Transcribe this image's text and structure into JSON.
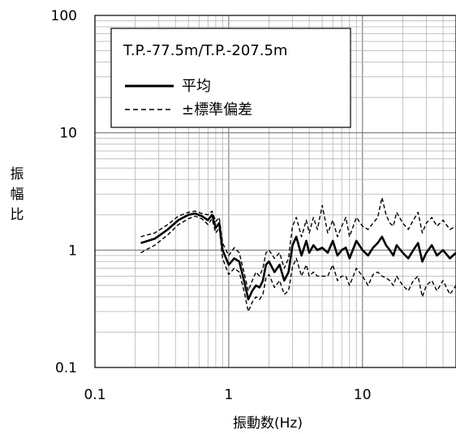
{
  "chart_data": {
    "type": "line",
    "xscale": "log",
    "yscale": "log",
    "xlim": [
      0.1,
      50
    ],
    "ylim": [
      0.1,
      100
    ],
    "x_ticks": [
      {
        "value": 0.1,
        "label": "0.1"
      },
      {
        "value": 1,
        "label": "1"
      },
      {
        "value": 10,
        "label": "10"
      }
    ],
    "y_ticks": [
      {
        "value": 0.1,
        "label": "0.1"
      },
      {
        "value": 1,
        "label": "1"
      },
      {
        "value": 10,
        "label": "10"
      },
      {
        "value": 100,
        "label": "100"
      }
    ],
    "xlabel": "振動数(Hz)",
    "ylabel": "振幅比",
    "grid": true,
    "legend": {
      "position": "top-left",
      "title": "T.P.-77.5m/T.P.-207.5m",
      "entries": [
        {
          "label": "平均",
          "style": "solid"
        },
        {
          "label": "±標準偏差",
          "style": "dashed"
        }
      ]
    },
    "x": [
      0.22,
      0.28,
      0.35,
      0.42,
      0.5,
      0.56,
      0.63,
      0.7,
      0.75,
      0.8,
      0.85,
      0.9,
      1.0,
      1.1,
      1.2,
      1.3,
      1.4,
      1.5,
      1.6,
      1.7,
      1.8,
      1.9,
      2.0,
      2.2,
      2.4,
      2.6,
      2.8,
      3.0,
      3.2,
      3.5,
      3.8,
      4.0,
      4.3,
      4.6,
      5.0,
      5.5,
      6.0,
      6.5,
      7.0,
      7.5,
      8.0,
      9.0,
      10,
      11,
      12,
      13,
      14,
      15,
      16,
      17,
      18,
      20,
      22,
      24,
      26,
      28,
      30,
      33,
      36,
      40,
      45,
      50
    ],
    "series": [
      {
        "name": "平均",
        "style": "solid",
        "values": [
          1.15,
          1.25,
          1.5,
          1.8,
          2.0,
          2.05,
          1.95,
          1.8,
          2.0,
          1.55,
          1.7,
          1.0,
          0.75,
          0.85,
          0.8,
          0.55,
          0.38,
          0.45,
          0.5,
          0.48,
          0.55,
          0.75,
          0.8,
          0.65,
          0.75,
          0.55,
          0.65,
          1.1,
          1.3,
          0.9,
          1.2,
          0.95,
          1.1,
          1.0,
          1.05,
          0.95,
          1.2,
          0.9,
          1.0,
          1.05,
          0.85,
          1.2,
          1.0,
          0.9,
          1.05,
          1.15,
          1.3,
          1.1,
          1.0,
          0.9,
          1.1,
          0.95,
          0.85,
          1.0,
          1.15,
          0.8,
          0.95,
          1.1,
          0.9,
          1.0,
          0.85,
          0.95
        ]
      },
      {
        "name": "+標準偏差",
        "style": "dashed",
        "values": [
          1.3,
          1.4,
          1.65,
          1.95,
          2.1,
          2.15,
          2.05,
          2.0,
          2.15,
          1.75,
          1.9,
          1.15,
          0.9,
          1.05,
          0.95,
          0.65,
          0.45,
          0.55,
          0.65,
          0.6,
          0.7,
          0.95,
          1.0,
          0.85,
          0.95,
          0.7,
          0.85,
          1.6,
          1.9,
          1.3,
          1.8,
          1.4,
          1.9,
          1.5,
          2.4,
          1.4,
          1.8,
          1.3,
          1.6,
          1.9,
          1.3,
          1.9,
          1.6,
          1.5,
          1.7,
          1.9,
          2.8,
          2.0,
          1.7,
          1.6,
          2.1,
          1.7,
          1.5,
          1.8,
          2.1,
          1.4,
          1.7,
          1.9,
          1.6,
          1.8,
          1.5,
          1.6
        ]
      },
      {
        "name": "−標準偏差",
        "style": "dashed",
        "values": [
          0.95,
          1.1,
          1.35,
          1.65,
          1.85,
          1.95,
          1.85,
          1.65,
          1.85,
          1.4,
          1.55,
          0.85,
          0.62,
          0.7,
          0.65,
          0.45,
          0.3,
          0.36,
          0.4,
          0.38,
          0.42,
          0.58,
          0.62,
          0.48,
          0.55,
          0.42,
          0.45,
          0.72,
          0.85,
          0.6,
          0.75,
          0.6,
          0.65,
          0.6,
          0.6,
          0.6,
          0.75,
          0.55,
          0.6,
          0.6,
          0.5,
          0.7,
          0.6,
          0.5,
          0.62,
          0.65,
          0.6,
          0.58,
          0.55,
          0.5,
          0.6,
          0.5,
          0.45,
          0.55,
          0.6,
          0.4,
          0.5,
          0.55,
          0.45,
          0.55,
          0.42,
          0.5
        ]
      }
    ]
  }
}
